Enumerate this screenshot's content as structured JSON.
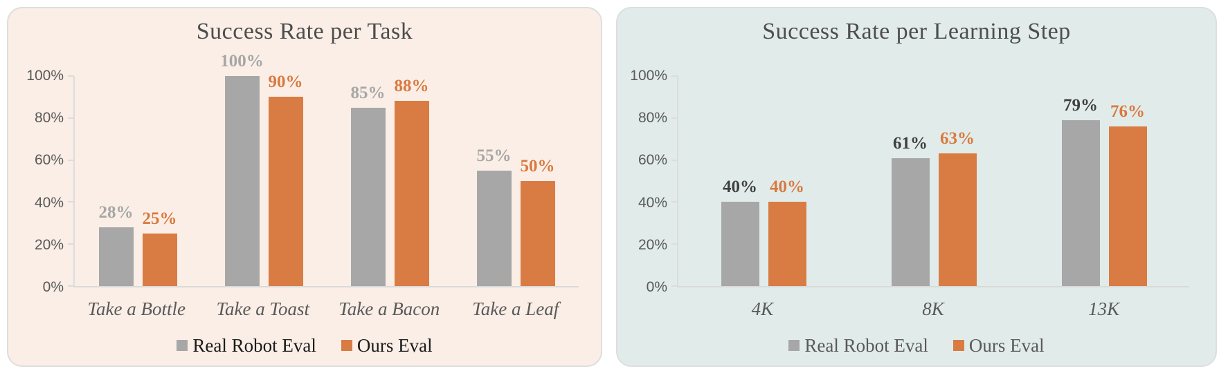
{
  "chart_data": [
    {
      "type": "bar",
      "title": "Success Rate per Task",
      "background": "#FAEEE6",
      "categories": [
        "Take a Bottle",
        "Take a Toast",
        "Take a Bacon",
        "Take a Leaf"
      ],
      "series": [
        {
          "name": "Real Robot Eval",
          "color": "#A7A7A7",
          "label_color": "#A6A6A6",
          "values": [
            28,
            100,
            85,
            55
          ]
        },
        {
          "name": "Ours Eval",
          "color": "#D97C44",
          "label_color": "#D8793F",
          "values": [
            25,
            90,
            88,
            50
          ]
        }
      ],
      "value_labels": [
        [
          "28%",
          "100%",
          "85%",
          "55%"
        ],
        [
          "25%",
          "90%",
          "88%",
          "50%"
        ]
      ],
      "y_ticks": [
        "100%",
        "80%",
        "60%",
        "40%",
        "20%",
        "0%"
      ],
      "ylim": [
        0,
        100
      ],
      "grid": false,
      "legend_position": "bottom",
      "legend_text_color": "#1A1A1A"
    },
    {
      "type": "bar",
      "title": "Success Rate per Learning Step",
      "background": "#E1ECEA",
      "categories": [
        "4K",
        "8K",
        "13K"
      ],
      "series": [
        {
          "name": "Real Robot Eval",
          "color": "#A7A7A7",
          "label_color": "#3F3F3F",
          "values": [
            40,
            61,
            79
          ]
        },
        {
          "name": "Ours Eval",
          "color": "#D97C44",
          "label_color": "#D8793F",
          "values": [
            40,
            63,
            76
          ]
        }
      ],
      "value_labels": [
        [
          "40%",
          "61%",
          "79%"
        ],
        [
          "40%",
          "63%",
          "76%"
        ]
      ],
      "y_ticks": [
        "100%",
        "80%",
        "60%",
        "40%",
        "20%",
        "0%"
      ],
      "ylim": [
        0,
        100
      ],
      "grid": false,
      "legend_position": "bottom",
      "legend_text_color": "#595959"
    }
  ]
}
